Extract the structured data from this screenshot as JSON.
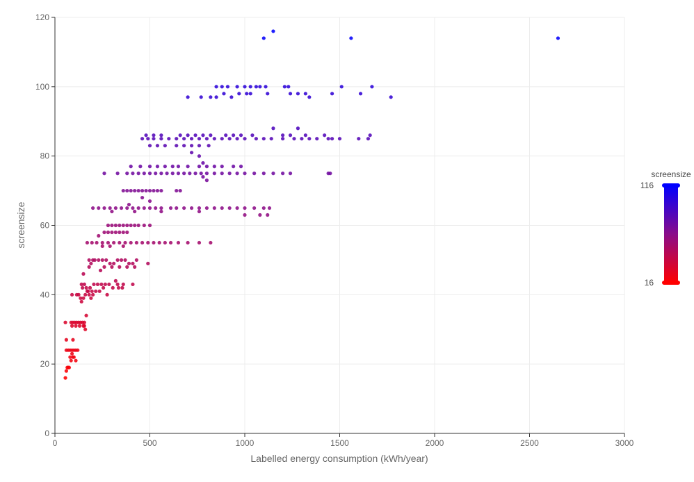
{
  "chart_data": {
    "type": "scatter",
    "title": "",
    "xlabel": "Labelled energy consumption (kWh/year)",
    "ylabel": "screensize",
    "xlim": [
      0,
      3000
    ],
    "ylim": [
      0,
      120
    ],
    "xticks": [
      0,
      500,
      1000,
      1500,
      2000,
      2500,
      3000
    ],
    "yticks": [
      0,
      20,
      40,
      60,
      80,
      100,
      120
    ],
    "grid": true,
    "color_by": "screensize",
    "colorscale": {
      "title": "screensize",
      "min": 16,
      "max": 116,
      "min_color": "#ff0000",
      "mid_color": "#8a0d8a",
      "max_color": "#0000ff",
      "min_label": "16",
      "max_label": "116"
    },
    "points": [
      [
        55,
        16
      ],
      [
        60,
        18
      ],
      [
        65,
        19
      ],
      [
        70,
        19
      ],
      [
        75,
        19
      ],
      [
        80,
        22
      ],
      [
        85,
        21
      ],
      [
        90,
        23
      ],
      [
        95,
        22
      ],
      [
        100,
        22
      ],
      [
        110,
        21
      ],
      [
        60,
        24
      ],
      [
        70,
        24
      ],
      [
        80,
        24
      ],
      [
        90,
        24
      ],
      [
        100,
        24
      ],
      [
        110,
        24
      ],
      [
        120,
        24
      ],
      [
        95,
        27
      ],
      [
        60,
        27
      ],
      [
        55,
        32
      ],
      [
        85,
        32
      ],
      [
        95,
        32
      ],
      [
        105,
        32
      ],
      [
        115,
        32
      ],
      [
        125,
        32
      ],
      [
        135,
        32
      ],
      [
        145,
        32
      ],
      [
        155,
        32
      ],
      [
        90,
        31
      ],
      [
        110,
        31
      ],
      [
        130,
        31
      ],
      [
        150,
        31
      ],
      [
        160,
        30
      ],
      [
        165,
        34
      ],
      [
        155,
        31
      ],
      [
        90,
        40
      ],
      [
        115,
        40
      ],
      [
        125,
        40
      ],
      [
        135,
        39
      ],
      [
        140,
        38
      ],
      [
        150,
        39
      ],
      [
        160,
        40
      ],
      [
        170,
        41
      ],
      [
        180,
        40
      ],
      [
        190,
        39
      ],
      [
        200,
        40
      ],
      [
        145,
        42
      ],
      [
        165,
        42
      ],
      [
        185,
        42
      ],
      [
        205,
        43
      ],
      [
        225,
        43
      ],
      [
        245,
        43
      ],
      [
        265,
        43
      ],
      [
        285,
        43
      ],
      [
        330,
        43
      ],
      [
        360,
        43
      ],
      [
        410,
        43
      ],
      [
        140,
        43
      ],
      [
        155,
        43
      ],
      [
        175,
        41
      ],
      [
        195,
        41
      ],
      [
        215,
        41
      ],
      [
        235,
        41
      ],
      [
        255,
        42
      ],
      [
        275,
        40
      ],
      [
        305,
        42
      ],
      [
        335,
        42
      ],
      [
        355,
        42
      ],
      [
        320,
        44
      ],
      [
        150,
        46
      ],
      [
        180,
        48
      ],
      [
        190,
        49
      ],
      [
        200,
        50
      ],
      [
        210,
        50
      ],
      [
        230,
        50
      ],
      [
        250,
        50
      ],
      [
        270,
        50
      ],
      [
        290,
        49
      ],
      [
        310,
        49
      ],
      [
        330,
        50
      ],
      [
        350,
        50
      ],
      [
        370,
        50
      ],
      [
        390,
        49
      ],
      [
        410,
        49
      ],
      [
        430,
        50
      ],
      [
        180,
        50
      ],
      [
        240,
        47
      ],
      [
        260,
        48
      ],
      [
        300,
        48
      ],
      [
        340,
        48
      ],
      [
        380,
        48
      ],
      [
        420,
        48
      ],
      [
        490,
        49
      ],
      [
        170,
        55
      ],
      [
        195,
        55
      ],
      [
        220,
        55
      ],
      [
        250,
        55
      ],
      [
        280,
        55
      ],
      [
        310,
        55
      ],
      [
        340,
        55
      ],
      [
        370,
        55
      ],
      [
        400,
        55
      ],
      [
        430,
        55
      ],
      [
        460,
        55
      ],
      [
        490,
        55
      ],
      [
        520,
        55
      ],
      [
        550,
        55
      ],
      [
        580,
        55
      ],
      [
        610,
        55
      ],
      [
        650,
        55
      ],
      [
        700,
        55
      ],
      [
        760,
        55
      ],
      [
        820,
        55
      ],
      [
        250,
        54
      ],
      [
        290,
        54
      ],
      [
        360,
        54
      ],
      [
        230,
        57
      ],
      [
        260,
        58
      ],
      [
        280,
        58
      ],
      [
        300,
        58
      ],
      [
        320,
        58
      ],
      [
        340,
        58
      ],
      [
        360,
        58
      ],
      [
        380,
        58
      ],
      [
        280,
        60
      ],
      [
        300,
        60
      ],
      [
        320,
        60
      ],
      [
        340,
        60
      ],
      [
        360,
        60
      ],
      [
        380,
        60
      ],
      [
        400,
        60
      ],
      [
        420,
        60
      ],
      [
        440,
        60
      ],
      [
        470,
        60
      ],
      [
        500,
        60
      ],
      [
        200,
        65
      ],
      [
        230,
        65
      ],
      [
        260,
        65
      ],
      [
        290,
        65
      ],
      [
        320,
        65
      ],
      [
        350,
        65
      ],
      [
        380,
        65
      ],
      [
        410,
        65
      ],
      [
        440,
        65
      ],
      [
        470,
        65
      ],
      [
        500,
        65
      ],
      [
        530,
        65
      ],
      [
        560,
        65
      ],
      [
        610,
        65
      ],
      [
        640,
        65
      ],
      [
        680,
        65
      ],
      [
        720,
        65
      ],
      [
        760,
        65
      ],
      [
        800,
        65
      ],
      [
        840,
        65
      ],
      [
        880,
        65
      ],
      [
        920,
        65
      ],
      [
        960,
        65
      ],
      [
        1000,
        65
      ],
      [
        1050,
        65
      ],
      [
        1100,
        65
      ],
      [
        1130,
        65
      ],
      [
        300,
        64
      ],
      [
        420,
        64
      ],
      [
        560,
        64
      ],
      [
        760,
        64
      ],
      [
        1000,
        63
      ],
      [
        1080,
        63
      ],
      [
        1120,
        63
      ],
      [
        390,
        66
      ],
      [
        460,
        68
      ],
      [
        500,
        67
      ],
      [
        360,
        70
      ],
      [
        380,
        70
      ],
      [
        400,
        70
      ],
      [
        420,
        70
      ],
      [
        440,
        70
      ],
      [
        460,
        70
      ],
      [
        480,
        70
      ],
      [
        500,
        70
      ],
      [
        520,
        70
      ],
      [
        540,
        70
      ],
      [
        560,
        70
      ],
      [
        640,
        70
      ],
      [
        660,
        70
      ],
      [
        260,
        75
      ],
      [
        330,
        75
      ],
      [
        380,
        75
      ],
      [
        410,
        75
      ],
      [
        440,
        75
      ],
      [
        470,
        75
      ],
      [
        500,
        75
      ],
      [
        530,
        75
      ],
      [
        560,
        75
      ],
      [
        590,
        75
      ],
      [
        620,
        75
      ],
      [
        650,
        75
      ],
      [
        680,
        75
      ],
      [
        710,
        75
      ],
      [
        740,
        75
      ],
      [
        770,
        75
      ],
      [
        800,
        75
      ],
      [
        840,
        75
      ],
      [
        880,
        75
      ],
      [
        920,
        75
      ],
      [
        960,
        75
      ],
      [
        1000,
        75
      ],
      [
        1050,
        75
      ],
      [
        1100,
        75
      ],
      [
        1150,
        75
      ],
      [
        1200,
        75
      ],
      [
        1240,
        75
      ],
      [
        1440,
        75
      ],
      [
        1450,
        75
      ],
      [
        780,
        74
      ],
      [
        800,
        73
      ],
      [
        400,
        77
      ],
      [
        450,
        77
      ],
      [
        500,
        77
      ],
      [
        540,
        77
      ],
      [
        580,
        77
      ],
      [
        620,
        77
      ],
      [
        650,
        77
      ],
      [
        700,
        77
      ],
      [
        760,
        77
      ],
      [
        800,
        77
      ],
      [
        840,
        77
      ],
      [
        880,
        77
      ],
      [
        940,
        77
      ],
      [
        980,
        77
      ],
      [
        780,
        78
      ],
      [
        760,
        80
      ],
      [
        720,
        81
      ],
      [
        500,
        83
      ],
      [
        540,
        83
      ],
      [
        580,
        83
      ],
      [
        640,
        83
      ],
      [
        680,
        83
      ],
      [
        720,
        83
      ],
      [
        760,
        83
      ],
      [
        810,
        83
      ],
      [
        460,
        85
      ],
      [
        490,
        85
      ],
      [
        520,
        85
      ],
      [
        560,
        85
      ],
      [
        600,
        85
      ],
      [
        640,
        85
      ],
      [
        680,
        85
      ],
      [
        720,
        85
      ],
      [
        760,
        85
      ],
      [
        800,
        85
      ],
      [
        840,
        85
      ],
      [
        880,
        85
      ],
      [
        920,
        85
      ],
      [
        960,
        85
      ],
      [
        1000,
        85
      ],
      [
        1060,
        85
      ],
      [
        1100,
        85
      ],
      [
        1140,
        85
      ],
      [
        1200,
        85
      ],
      [
        1260,
        85
      ],
      [
        1300,
        85
      ],
      [
        1340,
        85
      ],
      [
        1380,
        85
      ],
      [
        1440,
        85
      ],
      [
        1460,
        85
      ],
      [
        1500,
        85
      ],
      [
        1600,
        85
      ],
      [
        1650,
        85
      ],
      [
        480,
        86
      ],
      [
        520,
        86
      ],
      [
        560,
        86
      ],
      [
        660,
        86
      ],
      [
        700,
        86
      ],
      [
        740,
        86
      ],
      [
        780,
        86
      ],
      [
        820,
        86
      ],
      [
        900,
        86
      ],
      [
        940,
        86
      ],
      [
        980,
        86
      ],
      [
        1040,
        86
      ],
      [
        1200,
        86
      ],
      [
        1240,
        86
      ],
      [
        1320,
        86
      ],
      [
        1420,
        86
      ],
      [
        1660,
        86
      ],
      [
        1150,
        88
      ],
      [
        1280,
        88
      ],
      [
        700,
        97
      ],
      [
        770,
        97
      ],
      [
        820,
        97
      ],
      [
        850,
        97
      ],
      [
        890,
        98
      ],
      [
        930,
        97
      ],
      [
        970,
        98
      ],
      [
        1010,
        98
      ],
      [
        1030,
        98
      ],
      [
        1120,
        98
      ],
      [
        1240,
        98
      ],
      [
        1280,
        98
      ],
      [
        1320,
        98
      ],
      [
        1340,
        97
      ],
      [
        1460,
        98
      ],
      [
        1610,
        98
      ],
      [
        1770,
        97
      ],
      [
        850,
        100
      ],
      [
        880,
        100
      ],
      [
        910,
        100
      ],
      [
        960,
        100
      ],
      [
        1000,
        100
      ],
      [
        1030,
        100
      ],
      [
        1060,
        100
      ],
      [
        1080,
        100
      ],
      [
        1110,
        100
      ],
      [
        1210,
        100
      ],
      [
        1230,
        100
      ],
      [
        1510,
        100
      ],
      [
        1670,
        100
      ],
      [
        1100,
        114
      ],
      [
        1150,
        116
      ],
      [
        1560,
        114
      ],
      [
        2650,
        114
      ]
    ]
  }
}
